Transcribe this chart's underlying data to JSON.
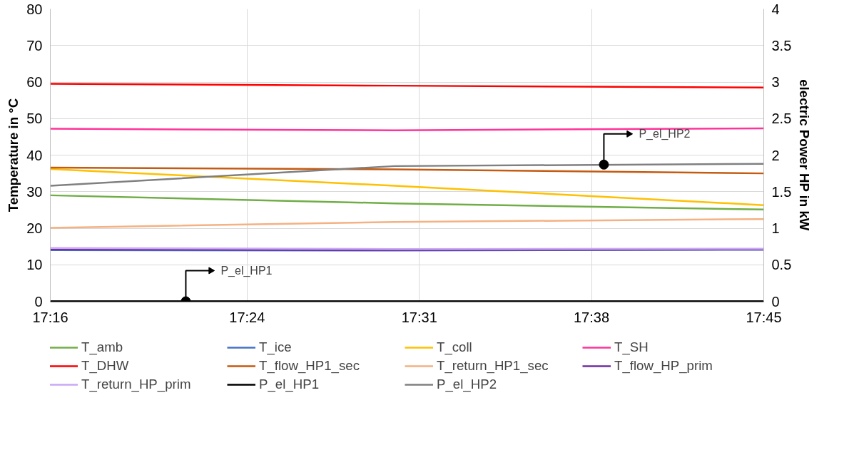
{
  "chart_data": {
    "type": "line",
    "ylabel": "Temperature in °C",
    "y2label": "electric Power HP in kW",
    "x": [
      17.2667,
      17.5,
      17.75
    ],
    "xlim": [
      17.2667,
      17.75
    ],
    "xticks": [
      {
        "value": 17.2667,
        "label": "17:16"
      },
      {
        "value": 17.4,
        "label": "17:24"
      },
      {
        "value": 17.5167,
        "label": "17:31"
      },
      {
        "value": 17.6333,
        "label": "17:38"
      },
      {
        "value": 17.75,
        "label": "17:45"
      }
    ],
    "ylim": [
      0,
      80
    ],
    "yticks": [
      0,
      10,
      20,
      30,
      40,
      50,
      60,
      70,
      80
    ],
    "y2lim": [
      0,
      4
    ],
    "y2ticks": [
      0,
      0.5,
      1,
      1.5,
      2,
      2.5,
      3,
      3.5,
      4
    ],
    "grid": true,
    "legend": "bottom",
    "marker": "none",
    "line_style": "solid",
    "series": [
      {
        "name": "T_amb",
        "color": "#70ad47",
        "values": [
          29.0,
          26.8,
          25.1
        ]
      },
      {
        "name": "T_ice",
        "color": "#4472c4",
        "values": [
          14.0,
          13.9,
          14.1
        ]
      },
      {
        "name": "T_coll",
        "color": "#ffc000",
        "values": [
          36.2,
          31.6,
          26.3
        ]
      },
      {
        "name": "T_SH",
        "color": "#ff3399",
        "values": [
          47.2,
          46.8,
          47.3
        ]
      },
      {
        "name": "T_DHW",
        "color": "#ff0000",
        "values": [
          59.5,
          59.0,
          58.5
        ]
      },
      {
        "name": "T_flow_HP1_sec",
        "color": "#c55a11",
        "values": [
          36.6,
          36.1,
          35.0
        ]
      },
      {
        "name": "T_return_HP1_sec",
        "color": "#f4b183",
        "values": [
          20.1,
          21.7,
          22.5
        ]
      },
      {
        "name": "T_flow_HP_prim",
        "color": "#7030a0",
        "values": [
          14.2,
          14.0,
          14.2
        ]
      },
      {
        "name": "T_return_HP_prim",
        "color": "#c9a8f5",
        "values": [
          14.6,
          14.3,
          14.4
        ]
      },
      {
        "name": "P_el_HP1",
        "color": "#000000",
        "axis": "y2",
        "values": [
          0,
          0,
          0
        ]
      },
      {
        "name": "P_el_HP2",
        "color": "#808080",
        "axis": "y2",
        "values": [
          1.58,
          1.85,
          1.88
        ]
      }
    ],
    "annotations": [
      {
        "text": "P_el_HP1",
        "x": 17.3585,
        "y": 0
      },
      {
        "text": "P_el_HP2",
        "x": 17.6417,
        "y": 37.4
      }
    ]
  }
}
